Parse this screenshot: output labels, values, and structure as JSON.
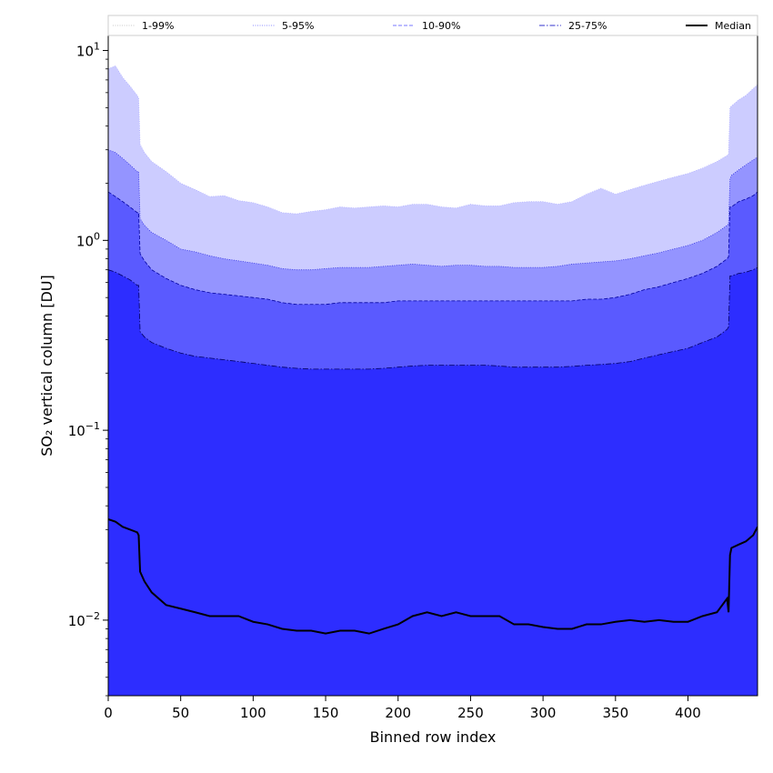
{
  "chart_data": {
    "type": "area",
    "title": "",
    "xlabel": "Binned row index",
    "ylabel": "SO₂ vertical column [DU]",
    "x_ticks": [
      0,
      50,
      100,
      150,
      200,
      250,
      300,
      350,
      400
    ],
    "y_ticks": [
      {
        "value": 0.01,
        "base": "10",
        "exp": "−2"
      },
      {
        "value": 0.1,
        "base": "10",
        "exp": "−1"
      },
      {
        "value": 1,
        "base": "10",
        "exp": "0"
      },
      {
        "value": 10,
        "base": "10",
        "exp": "1"
      }
    ],
    "xlim": [
      0,
      448
    ],
    "ylim": [
      0.004,
      12
    ],
    "yscale": "log",
    "grid": false,
    "legend_position": "top",
    "colors": {
      "band_1_99": "#ccccff",
      "band_5_95": "#9494ff",
      "band_10_90": "#5a5aff",
      "band_25_75": "#2d2dff",
      "median": "#000000"
    },
    "x": [
      0,
      5,
      10,
      15,
      20,
      21,
      22,
      25,
      30,
      40,
      50,
      60,
      70,
      80,
      90,
      100,
      110,
      120,
      130,
      140,
      150,
      160,
      170,
      180,
      190,
      200,
      210,
      220,
      230,
      240,
      250,
      260,
      270,
      280,
      290,
      300,
      310,
      320,
      330,
      340,
      350,
      360,
      370,
      380,
      390,
      400,
      410,
      420,
      427,
      428,
      429,
      430,
      435,
      440,
      445,
      448
    ],
    "series": [
      {
        "name": "1-99%",
        "style": "dotted",
        "values": [
          8.0,
          8.3,
          7.2,
          6.5,
          5.8,
          5.6,
          3.2,
          2.9,
          2.6,
          2.3,
          2.0,
          1.85,
          1.7,
          1.72,
          1.62,
          1.58,
          1.5,
          1.4,
          1.38,
          1.42,
          1.45,
          1.5,
          1.48,
          1.5,
          1.52,
          1.5,
          1.55,
          1.55,
          1.5,
          1.48,
          1.55,
          1.52,
          1.52,
          1.58,
          1.6,
          1.6,
          1.55,
          1.6,
          1.75,
          1.88,
          1.75,
          1.85,
          1.95,
          2.05,
          2.15,
          2.25,
          2.4,
          2.6,
          2.8,
          2.85,
          5.0,
          5.1,
          5.5,
          5.8,
          6.3,
          6.6
        ]
      },
      {
        "name": "5-95%",
        "style": "dotted",
        "values": [
          3.0,
          2.9,
          2.7,
          2.5,
          2.3,
          2.3,
          1.3,
          1.2,
          1.1,
          1.0,
          0.9,
          0.87,
          0.83,
          0.8,
          0.78,
          0.76,
          0.74,
          0.71,
          0.7,
          0.7,
          0.71,
          0.72,
          0.72,
          0.72,
          0.73,
          0.74,
          0.75,
          0.74,
          0.73,
          0.74,
          0.74,
          0.73,
          0.73,
          0.72,
          0.72,
          0.72,
          0.73,
          0.75,
          0.76,
          0.77,
          0.78,
          0.8,
          0.83,
          0.86,
          0.9,
          0.94,
          1.0,
          1.1,
          1.2,
          1.22,
          2.1,
          2.2,
          2.35,
          2.5,
          2.65,
          2.75
        ]
      },
      {
        "name": "10-90%",
        "style": "dashed",
        "values": [
          1.8,
          1.7,
          1.6,
          1.5,
          1.4,
          1.4,
          0.85,
          0.78,
          0.7,
          0.63,
          0.58,
          0.55,
          0.53,
          0.52,
          0.51,
          0.5,
          0.49,
          0.47,
          0.46,
          0.46,
          0.46,
          0.47,
          0.47,
          0.47,
          0.47,
          0.48,
          0.48,
          0.48,
          0.48,
          0.48,
          0.48,
          0.48,
          0.48,
          0.48,
          0.48,
          0.48,
          0.48,
          0.48,
          0.49,
          0.49,
          0.5,
          0.52,
          0.55,
          0.57,
          0.6,
          0.63,
          0.67,
          0.73,
          0.8,
          0.82,
          1.5,
          1.5,
          1.6,
          1.65,
          1.72,
          1.8
        ]
      },
      {
        "name": "25-75%",
        "style": "dashdot",
        "values": [
          0.7,
          0.68,
          0.65,
          0.62,
          0.58,
          0.58,
          0.33,
          0.31,
          0.29,
          0.27,
          0.255,
          0.245,
          0.24,
          0.235,
          0.23,
          0.225,
          0.22,
          0.215,
          0.212,
          0.21,
          0.21,
          0.21,
          0.21,
          0.21,
          0.212,
          0.215,
          0.218,
          0.22,
          0.22,
          0.22,
          0.22,
          0.22,
          0.218,
          0.215,
          0.215,
          0.215,
          0.215,
          0.217,
          0.22,
          0.222,
          0.225,
          0.23,
          0.24,
          0.25,
          0.26,
          0.27,
          0.29,
          0.31,
          0.34,
          0.35,
          0.65,
          0.65,
          0.67,
          0.68,
          0.7,
          0.72
        ]
      },
      {
        "name": "Median",
        "style": "solid",
        "values": [
          0.034,
          0.033,
          0.031,
          0.03,
          0.029,
          0.028,
          0.018,
          0.016,
          0.014,
          0.012,
          0.0115,
          0.011,
          0.0105,
          0.0105,
          0.0105,
          0.0098,
          0.0095,
          0.009,
          0.0088,
          0.0088,
          0.0085,
          0.0088,
          0.0088,
          0.0085,
          0.009,
          0.0095,
          0.0105,
          0.011,
          0.0105,
          0.011,
          0.0105,
          0.0105,
          0.0105,
          0.0095,
          0.0095,
          0.0092,
          0.009,
          0.009,
          0.0095,
          0.0095,
          0.0098,
          0.01,
          0.0098,
          0.01,
          0.0098,
          0.0098,
          0.0105,
          0.011,
          0.013,
          0.011,
          0.022,
          0.024,
          0.025,
          0.026,
          0.028,
          0.031
        ]
      }
    ]
  }
}
